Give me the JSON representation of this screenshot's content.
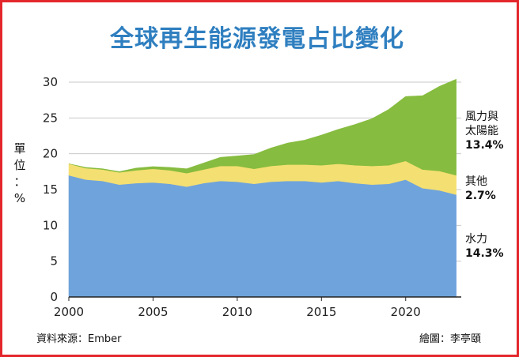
{
  "chart_data": {
    "type": "area",
    "stacked": true,
    "title": "全球再生能源發電占比變化",
    "ylabel": "單位：%",
    "xlabel": "",
    "x": [
      2000,
      2001,
      2002,
      2003,
      2004,
      2005,
      2006,
      2007,
      2008,
      2009,
      2010,
      2011,
      2012,
      2013,
      2014,
      2015,
      2016,
      2017,
      2018,
      2019,
      2020,
      2021,
      2022,
      2023
    ],
    "xlim": [
      2000,
      2023.3
    ],
    "ylim": [
      0,
      30
    ],
    "xticks": [
      "2000",
      "2005",
      "2010",
      "2015",
      "2020"
    ],
    "yticks": [
      "0",
      "5",
      "10",
      "15",
      "20",
      "25",
      "30"
    ],
    "grid": "horizontal",
    "series": [
      {
        "name": "水力",
        "color": "#6fa3dc",
        "label_value": "14.3%",
        "values": [
          17.0,
          16.4,
          16.2,
          15.7,
          15.9,
          16.0,
          15.8,
          15.4,
          15.9,
          16.2,
          16.1,
          15.8,
          16.1,
          16.2,
          16.2,
          16.0,
          16.2,
          15.9,
          15.7,
          15.8,
          16.4,
          15.2,
          14.9,
          14.3
        ]
      },
      {
        "name": "其他",
        "color": "#f4df72",
        "label_value": "2.7%",
        "values": [
          1.6,
          1.6,
          1.6,
          1.7,
          1.8,
          1.9,
          1.9,
          1.9,
          1.9,
          2.1,
          2.2,
          2.1,
          2.2,
          2.3,
          2.3,
          2.4,
          2.4,
          2.5,
          2.6,
          2.6,
          2.6,
          2.6,
          2.7,
          2.7
        ]
      },
      {
        "name": "風力與太陽能",
        "color": "#86bc3f",
        "label_value": "13.4%",
        "values": [
          0.0,
          0.1,
          0.1,
          0.1,
          0.3,
          0.3,
          0.4,
          0.6,
          0.9,
          1.2,
          1.4,
          2.0,
          2.5,
          3.0,
          3.4,
          4.2,
          4.8,
          5.7,
          6.6,
          7.8,
          9.0,
          10.3,
          11.8,
          13.4
        ]
      }
    ],
    "legend_position": "right",
    "legend_labels": [
      {
        "lines": [
          "風力與",
          "太陽能"
        ],
        "value": "13.4%"
      },
      {
        "lines": [
          "其他"
        ],
        "value": "2.7%"
      },
      {
        "lines": [
          "水力"
        ],
        "value": "14.3%"
      }
    ]
  },
  "footer": {
    "source": "資料來源：Ember",
    "credit": "繪圖：李亭頤"
  }
}
